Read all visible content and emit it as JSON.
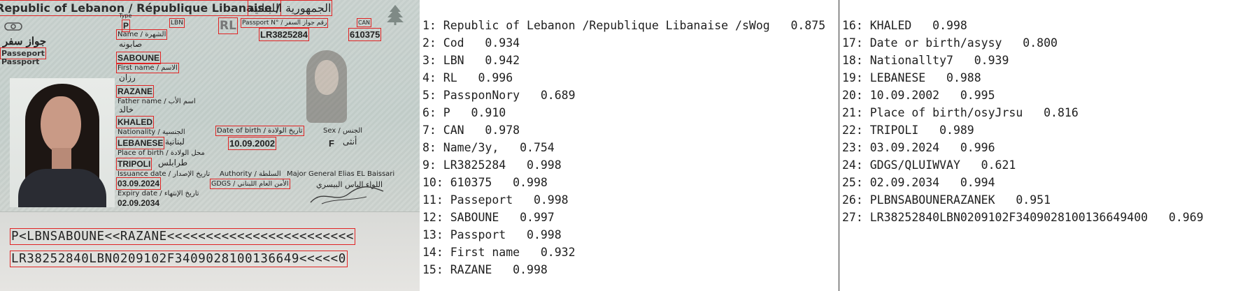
{
  "passport": {
    "header_line": "Republic of Lebanon / République Libanaise /",
    "header_arabic": "الجمهورية اللبنانية",
    "passport_arabic": "جواز سفر",
    "passport_fr": "Passeport",
    "passport_en": "Passport",
    "type_label": "Type",
    "type_value": "P",
    "code_label": "Code",
    "code_value": "LBN",
    "rl_stamp": "RL",
    "passport_no_label": "Passport N° / رقم جواز السفر",
    "passport_no": "LR3825284",
    "can_label": "CAN",
    "can_value": "610375",
    "name_label": "Name / الشهرة",
    "surname": "SABOUNE",
    "surname_arabic": "صابونه",
    "first_name_label": "First name / الاسم",
    "first_name": "RAZANE",
    "first_name_arabic": "رزان",
    "father_label": "Father name / اسم الأب",
    "father_arabic": "خالد",
    "father_name": "KHALED",
    "nationality_label": "Nationality / الجنسية",
    "nationality": "LEBANESE",
    "nationality_arabic": "لبنانية",
    "dob_label": "Date of birth / تاريخ الولادة",
    "dob": "10.09.2002",
    "sex_label": "Sex / الجنس",
    "sex": "F",
    "sex_arabic": "أنثى",
    "pob_label": "Place of birth / محل الولادة",
    "pob": "TRIPOLI",
    "pob_arabic": "طرابلس",
    "issuance_label": "Issuance date / تاريخ الإصدار",
    "issuance": "03.09.2024",
    "expiry_label": "Expiry date / تاريخ الإنتهاء",
    "expiry": "02.09.2034",
    "authority_label": "Authority / السلطة",
    "authority": "GDGS / الأمن العام اللبناني",
    "officer": "Major General Elias EL Baissari",
    "officer_arabic": "اللواء الياس البيسري",
    "mrz_line1": "P<LBNSABOUNE<<RAZANE<<<<<<<<<<<<<<<<<<<<<<<<",
    "mrz_line2": "LR38252840LBN0209102F3409028100136649<<<<<0"
  },
  "ocr_left": [
    "1: Republic of Lebanon /Republique Libanaise /sWog   0.875",
    "2: Cod   0.934",
    "3: LBN   0.942",
    "4: RL   0.996",
    "5: PassponNory   0.689",
    "6: P   0.910",
    "7: CAN   0.978",
    "8: Name/3y,   0.754",
    "9: LR3825284   0.998",
    "10: 610375   0.998",
    "11: Passeport   0.998",
    "12: SABOUNE   0.997",
    "13: Passport   0.998",
    "14: First name   0.932",
    "15: RAZANE   0.998"
  ],
  "ocr_right": [
    "16: KHALED   0.998",
    "17: Date or birth/asysy   0.800",
    "18: Nationallty7   0.939",
    "19: LEBANESE   0.988",
    "20: 10.09.2002   0.995",
    "21: Place of birth/osyJrsu   0.816",
    "22: TRIPOLI   0.989",
    "23: 03.09.2024   0.996",
    "24: GDGS/QLUIWVAY   0.621",
    "25: 02.09.2034   0.994",
    "26: PLBNSABOUNERAZANEK   0.951",
    "27: LR38252840LBN0209102F3409028100136649400   0.969"
  ],
  "colors": {
    "detection_box": "#e02424",
    "divider": "#333333"
  }
}
